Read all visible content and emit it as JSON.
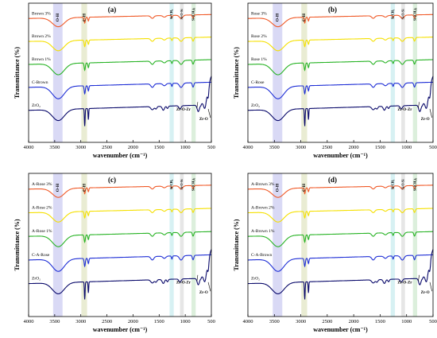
{
  "chart_data": [
    {
      "type": "line",
      "panel_label": "(a)",
      "xlabel": "wavenumber (cm⁻¹)",
      "ylabel": "Transmittance (%)",
      "xlim": [
        4000,
        500
      ],
      "xticks": [
        4000,
        3500,
        3000,
        2500,
        2000,
        1500,
        1000,
        500
      ],
      "bands": [
        {
          "label": "O-H",
          "from": 3530,
          "to": 3350,
          "color": "#d9d9f5"
        },
        {
          "label": "C-H",
          "from": 2990,
          "to": 2880,
          "color": "#e9ecd3"
        },
        {
          "label": "Si-CH₃",
          "from": 1300,
          "to": 1220,
          "color": "#d7f1f3"
        },
        {
          "label": "Si-O-Si",
          "from": 1100,
          "to": 1030,
          "color": "#e6e6e6"
        },
        {
          "label": "Si-(CH₃)₃",
          "from": 880,
          "to": 800,
          "color": "#dcefdc"
        }
      ],
      "annotations": [
        "Zr-O-Zr",
        "Zr-O"
      ],
      "series": [
        {
          "name": "Brown 3%",
          "color": "#f05a28"
        },
        {
          "name": "Brown 2%",
          "color": "#f5e000"
        },
        {
          "name": "Brown 1%",
          "color": "#27b324"
        },
        {
          "name": "C-Brown",
          "color": "#1f2fd6"
        },
        {
          "name": "ZrO₂",
          "color": "#0a0a6b"
        }
      ]
    },
    {
      "type": "line",
      "panel_label": "(b)",
      "xlabel": "wavenumber (cm⁻¹)",
      "ylabel": "Transmittance (%)",
      "xlim": [
        4000,
        500
      ],
      "xticks": [
        4000,
        3500,
        3000,
        2500,
        2000,
        1500,
        1000,
        500
      ],
      "bands": [
        {
          "label": "O-H",
          "from": 3530,
          "to": 3350,
          "color": "#d9d9f5"
        },
        {
          "label": "C-H",
          "from": 2990,
          "to": 2880,
          "color": "#e9ecd3"
        },
        {
          "label": "Si-CH₃",
          "from": 1300,
          "to": 1220,
          "color": "#d7f1f3"
        },
        {
          "label": "Si-O-Si",
          "from": 1100,
          "to": 1030,
          "color": "#e6e6e6"
        },
        {
          "label": "Si-(CH₃)₃",
          "from": 880,
          "to": 800,
          "color": "#dcefdc"
        }
      ],
      "annotations": [
        "Zr-O-Zr",
        "Zr-O"
      ],
      "series": [
        {
          "name": "Rose 3%",
          "color": "#f05a28"
        },
        {
          "name": "Rose 2%",
          "color": "#f5e000"
        },
        {
          "name": "Rose 1%",
          "color": "#27b324"
        },
        {
          "name": "C-Rose",
          "color": "#1f2fd6"
        },
        {
          "name": "ZrO₂",
          "color": "#0a0a6b"
        }
      ]
    },
    {
      "type": "line",
      "panel_label": "(c)",
      "xlabel": "wavenumber (cm⁻¹)",
      "ylabel": "Transmittance (%)",
      "xlim": [
        4000,
        500
      ],
      "xticks": [
        4000,
        3500,
        3000,
        2500,
        2000,
        1500,
        1000,
        500
      ],
      "bands": [
        {
          "label": "O-H",
          "from": 3530,
          "to": 3350,
          "color": "#d9d9f5"
        },
        {
          "label": "C-H",
          "from": 2990,
          "to": 2880,
          "color": "#e9ecd3"
        },
        {
          "label": "Si-CH₃",
          "from": 1300,
          "to": 1220,
          "color": "#d7f1f3"
        },
        {
          "label": "Si-O-Si",
          "from": 1100,
          "to": 1030,
          "color": "#e6e6e6"
        },
        {
          "label": "Si-(CH₃)₃",
          "from": 880,
          "to": 800,
          "color": "#dcefdc"
        }
      ],
      "annotations": [
        "Zr-O-Zr",
        "Zr-O"
      ],
      "series": [
        {
          "name": "A-Rose 3%",
          "color": "#f05a28"
        },
        {
          "name": "A-Rose 2%",
          "color": "#f5e000"
        },
        {
          "name": "A-Rose 1%",
          "color": "#27b324"
        },
        {
          "name": "C-A-Rose",
          "color": "#1f2fd6"
        },
        {
          "name": "ZrO₂",
          "color": "#0a0a6b"
        }
      ]
    },
    {
      "type": "line",
      "panel_label": "(d)",
      "xlabel": "wavenumber (cm⁻¹)",
      "ylabel": "Transmittance (%)",
      "xlim": [
        4000,
        500
      ],
      "xticks": [
        4000,
        3500,
        3000,
        2500,
        2000,
        1500,
        1000,
        500
      ],
      "bands": [
        {
          "label": "O-H",
          "from": 3530,
          "to": 3350,
          "color": "#d9d9f5"
        },
        {
          "label": "C-H",
          "from": 2990,
          "to": 2880,
          "color": "#e9ecd3"
        },
        {
          "label": "Si-CH₃",
          "from": 1300,
          "to": 1220,
          "color": "#d7f1f3"
        },
        {
          "label": "Si-O-Si",
          "from": 1100,
          "to": 1030,
          "color": "#e6e6e6"
        },
        {
          "label": "Si-(CH₃)₃",
          "from": 880,
          "to": 800,
          "color": "#dcefdc"
        }
      ],
      "annotations": [
        "Zr-O-Zr",
        "Zr-O"
      ],
      "series": [
        {
          "name": "A-Brown 3%",
          "color": "#f05a28"
        },
        {
          "name": "A-Brown 2%",
          "color": "#f5e000"
        },
        {
          "name": "A-Brown 1%",
          "color": "#27b324"
        },
        {
          "name": "C-A-Brown",
          "color": "#1f2fd6"
        },
        {
          "name": "ZrO₂",
          "color": "#0a0a6b"
        }
      ]
    }
  ]
}
